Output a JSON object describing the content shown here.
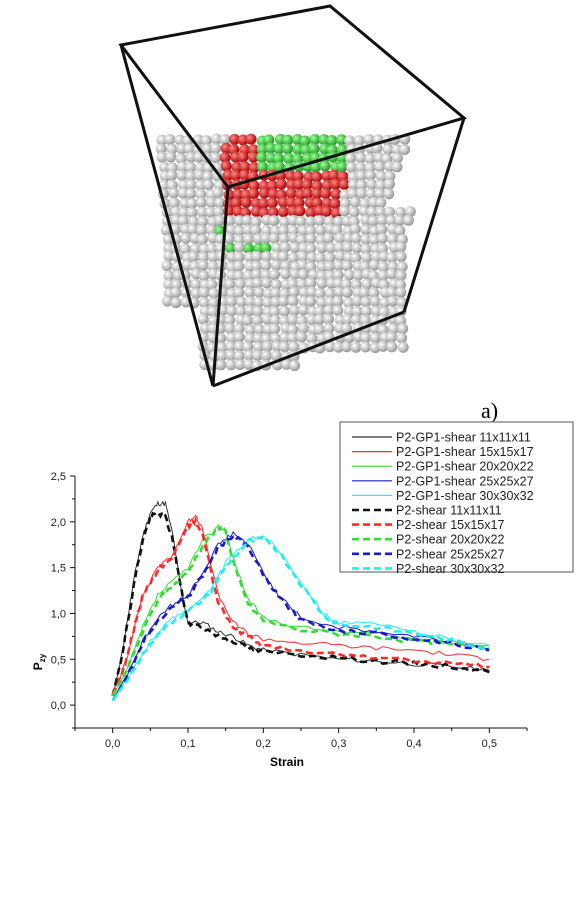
{
  "figure": {
    "panel_label": "a)"
  },
  "chart_data": {
    "type": "line",
    "xlabel": "Strain",
    "ylabel": "P",
    "ylabel_sub": "zy",
    "xlim": [
      -0.05,
      0.55
    ],
    "ylim": [
      -0.25,
      2.5
    ],
    "xticks": [
      "0,0",
      "0,1",
      "0,2",
      "0,3",
      "0,4",
      "0,5"
    ],
    "yticks": [
      "0,0",
      "0,5",
      "1,0",
      "1,5",
      "2,0",
      "2,5"
    ],
    "legend_position": "top-right",
    "series": [
      {
        "name": "P2-GP1-shear 11x11x11",
        "color": "#333333",
        "dashed": false,
        "x": [
          0,
          0.01,
          0.02,
          0.03,
          0.04,
          0.05,
          0.06,
          0.07,
          0.08,
          0.09,
          0.1,
          0.12,
          0.14,
          0.16,
          0.18,
          0.2,
          0.25,
          0.3,
          0.35,
          0.4,
          0.45,
          0.5
        ],
        "y": [
          0.1,
          0.45,
          0.95,
          1.45,
          1.85,
          2.1,
          2.2,
          2.2,
          1.85,
          1.3,
          0.9,
          0.9,
          0.8,
          0.75,
          0.65,
          0.6,
          0.55,
          0.5,
          0.48,
          0.45,
          0.42,
          0.38
        ]
      },
      {
        "name": "P2-GP1-shear 15x15x17",
        "color": "#ff2a2a",
        "dashed": false,
        "x": [
          0,
          0.01,
          0.02,
          0.03,
          0.04,
          0.06,
          0.08,
          0.1,
          0.11,
          0.12,
          0.14,
          0.16,
          0.18,
          0.2,
          0.25,
          0.3,
          0.35,
          0.4,
          0.45,
          0.5
        ],
        "y": [
          0.15,
          0.3,
          0.55,
          0.9,
          1.2,
          1.5,
          1.65,
          2.0,
          2.08,
          1.9,
          1.2,
          0.9,
          0.78,
          0.72,
          0.68,
          0.65,
          0.62,
          0.6,
          0.55,
          0.5
        ]
      },
      {
        "name": "P2-GP1-shear 20x20x22",
        "color": "#33dd33",
        "dashed": false,
        "x": [
          0,
          0.02,
          0.04,
          0.06,
          0.08,
          0.1,
          0.12,
          0.14,
          0.15,
          0.16,
          0.18,
          0.2,
          0.25,
          0.3,
          0.35,
          0.4,
          0.45,
          0.5
        ],
        "y": [
          0.1,
          0.4,
          0.85,
          1.2,
          1.35,
          1.5,
          1.8,
          1.95,
          1.9,
          1.6,
          1.15,
          0.95,
          0.85,
          0.8,
          0.78,
          0.72,
          0.68,
          0.65
        ]
      },
      {
        "name": "P2-GP1-shear 25x25x27",
        "color": "#1a1acc",
        "dashed": false,
        "x": [
          0,
          0.02,
          0.04,
          0.06,
          0.08,
          0.1,
          0.12,
          0.14,
          0.16,
          0.18,
          0.2,
          0.22,
          0.25,
          0.3,
          0.35,
          0.4,
          0.45,
          0.5
        ],
        "y": [
          0.05,
          0.35,
          0.7,
          0.95,
          1.1,
          1.2,
          1.45,
          1.75,
          1.88,
          1.75,
          1.45,
          1.2,
          0.95,
          0.85,
          0.8,
          0.75,
          0.7,
          0.62
        ]
      },
      {
        "name": "P2-GP1-shear 30x30x32",
        "color": "#22eeee",
        "dashed": false,
        "x": [
          0,
          0.02,
          0.05,
          0.08,
          0.1,
          0.13,
          0.15,
          0.18,
          0.2,
          0.22,
          0.25,
          0.28,
          0.3,
          0.35,
          0.4,
          0.45,
          0.5
        ],
        "y": [
          0.05,
          0.3,
          0.7,
          0.95,
          1.05,
          1.25,
          1.55,
          1.8,
          1.85,
          1.7,
          1.35,
          1.0,
          0.9,
          0.88,
          0.8,
          0.72,
          0.65
        ]
      },
      {
        "name": "P2-shear 11x11x11",
        "color": "#111111",
        "dashed": true,
        "x": [
          0,
          0.01,
          0.02,
          0.03,
          0.04,
          0.05,
          0.06,
          0.07,
          0.08,
          0.09,
          0.1,
          0.12,
          0.14,
          0.16,
          0.18,
          0.2,
          0.25,
          0.3,
          0.35,
          0.4,
          0.45,
          0.5
        ],
        "y": [
          0.1,
          0.45,
          0.9,
          1.4,
          1.8,
          2.05,
          2.1,
          2.05,
          1.8,
          1.3,
          0.9,
          0.85,
          0.75,
          0.7,
          0.62,
          0.58,
          0.55,
          0.52,
          0.48,
          0.45,
          0.42,
          0.36
        ]
      },
      {
        "name": "P2-shear 15x15x17",
        "color": "#ff2a2a",
        "dashed": true,
        "x": [
          0,
          0.01,
          0.02,
          0.03,
          0.04,
          0.06,
          0.08,
          0.1,
          0.11,
          0.12,
          0.14,
          0.16,
          0.18,
          0.2,
          0.25,
          0.3,
          0.35,
          0.4,
          0.45,
          0.5
        ],
        "y": [
          0.12,
          0.3,
          0.55,
          0.9,
          1.2,
          1.48,
          1.62,
          1.95,
          2.0,
          1.85,
          1.1,
          0.85,
          0.75,
          0.65,
          0.58,
          0.55,
          0.52,
          0.48,
          0.45,
          0.42
        ]
      },
      {
        "name": "P2-shear 20x20x22",
        "color": "#33dd33",
        "dashed": true,
        "x": [
          0,
          0.02,
          0.04,
          0.06,
          0.08,
          0.1,
          0.12,
          0.14,
          0.15,
          0.16,
          0.18,
          0.2,
          0.25,
          0.3,
          0.35,
          0.4,
          0.45,
          0.5
        ],
        "y": [
          0.1,
          0.4,
          0.8,
          1.15,
          1.3,
          1.45,
          1.75,
          1.93,
          1.9,
          1.55,
          1.1,
          0.92,
          0.82,
          0.78,
          0.75,
          0.7,
          0.66,
          0.62
        ]
      },
      {
        "name": "P2-shear 25x25x27",
        "color": "#1a1acc",
        "dashed": true,
        "x": [
          0,
          0.02,
          0.04,
          0.06,
          0.08,
          0.1,
          0.12,
          0.14,
          0.16,
          0.18,
          0.2,
          0.22,
          0.25,
          0.3,
          0.35,
          0.4,
          0.45,
          0.5
        ],
        "y": [
          0.05,
          0.32,
          0.68,
          0.92,
          1.08,
          1.18,
          1.42,
          1.72,
          1.85,
          1.72,
          1.42,
          1.18,
          0.92,
          0.82,
          0.78,
          0.73,
          0.68,
          0.6
        ]
      },
      {
        "name": "P2-shear 30x30x32",
        "color": "#22eeee",
        "dashed": true,
        "x": [
          0,
          0.02,
          0.05,
          0.08,
          0.1,
          0.13,
          0.15,
          0.18,
          0.2,
          0.22,
          0.25,
          0.28,
          0.3,
          0.35,
          0.4,
          0.45,
          0.5
        ],
        "y": [
          0.05,
          0.28,
          0.68,
          0.92,
          1.02,
          1.22,
          1.52,
          1.78,
          1.82,
          1.68,
          1.32,
          0.98,
          0.88,
          0.85,
          0.78,
          0.7,
          0.62
        ]
      }
    ]
  }
}
